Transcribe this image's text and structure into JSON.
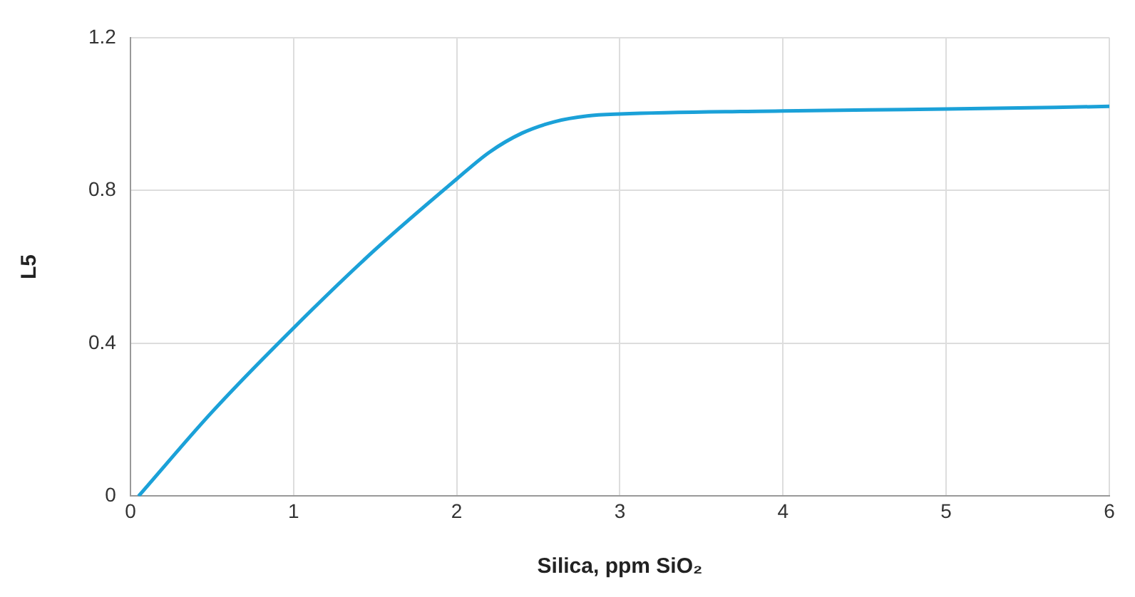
{
  "chart_data": {
    "type": "line",
    "xlabel": "Silica, ppm SiO₂",
    "ylabel": "L5",
    "series": [
      {
        "color": "#1ba1d8",
        "x": [
          0.05,
          0.5,
          1,
          1.5,
          2,
          2.2,
          2.4,
          2.6,
          2.8,
          3,
          4,
          5,
          6
        ],
        "values": [
          0,
          0.22,
          0.44,
          0.645,
          0.83,
          0.9,
          0.95,
          0.98,
          0.995,
          1.0,
          1.008,
          1.013,
          1.02
        ]
      }
    ],
    "xlim": [
      0,
      6
    ],
    "xticks": [
      0,
      1,
      2,
      3,
      4,
      5,
      6
    ],
    "ylim": [
      0,
      1.2
    ],
    "yticks": [
      0,
      0.4,
      0.8,
      1.2
    ],
    "grid": true,
    "legend": false,
    "marker": "none",
    "line_style": "solid"
  }
}
